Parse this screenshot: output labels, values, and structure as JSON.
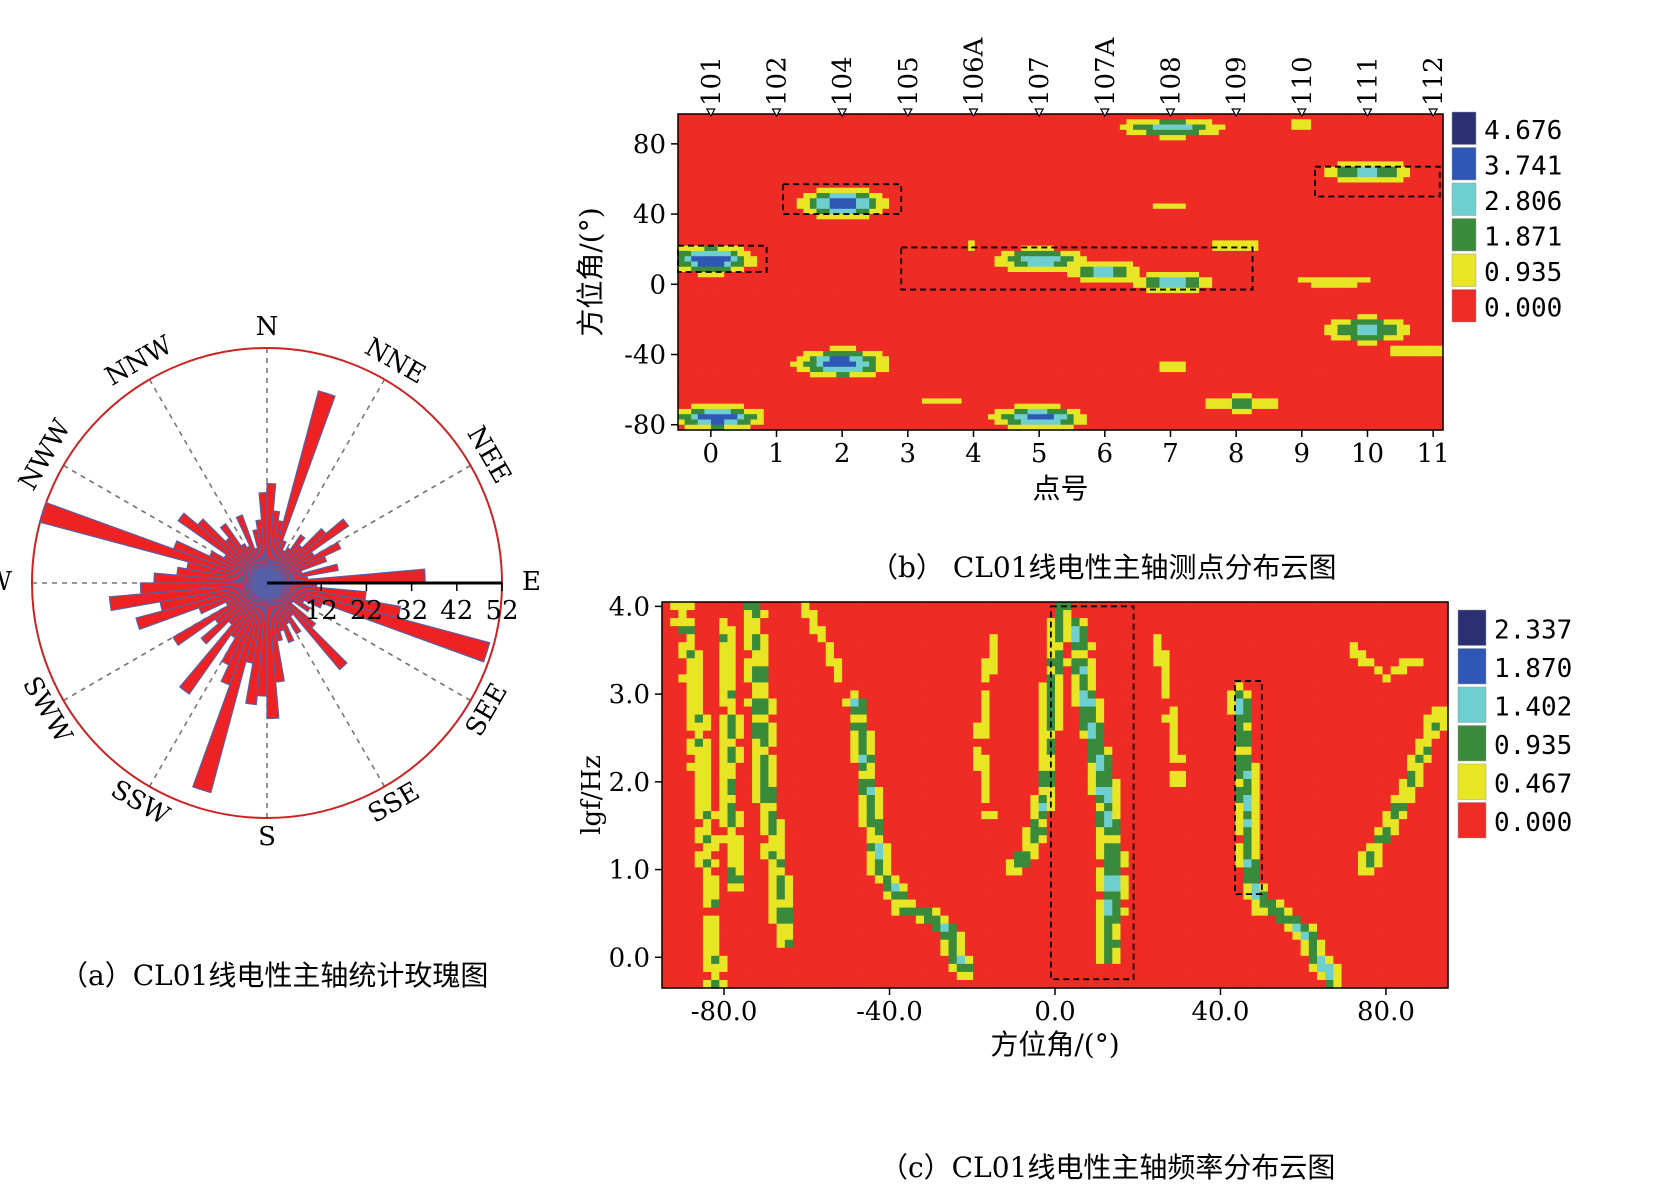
{
  "figure": {
    "caption_a": "（a）CL01线电性主轴统计玫瑰图",
    "caption_b": "（b） CL01线电性主轴测点分布云图",
    "caption_c": "（c）CL01线电性主轴频率分布云图"
  },
  "colors": {
    "rose_fill": "#ee2222",
    "rose_edge": "#5560a8",
    "circle": "#cc2222",
    "cmap": [
      "#ee2b24",
      "#e8e624",
      "#3a8a3c",
      "#6fcfcf",
      "#2f58b6",
      "#2b3072"
    ]
  },
  "chart_data": [
    {
      "id": "rose",
      "type": "rose",
      "directions": [
        "N",
        "NNE",
        "NEE",
        "E",
        "SEE",
        "SSE",
        "S",
        "SSW",
        "SWW",
        "W",
        "NWW",
        "NNW"
      ],
      "radial_ticks": [
        "12",
        "22",
        "32",
        "42",
        "52"
      ],
      "r_max": 52,
      "bin_width_deg": 5,
      "bins": [
        {
          "azimuth": 2.5,
          "value": 22
        },
        {
          "azimuth": 7.5,
          "value": 16
        },
        {
          "azimuth": 12.5,
          "value": 14
        },
        {
          "azimuth": 17.5,
          "value": 44
        },
        {
          "azimuth": 22.5,
          "value": 10
        },
        {
          "azimuth": 27.5,
          "value": 8
        },
        {
          "azimuth": 32.5,
          "value": 9
        },
        {
          "azimuth": 37.5,
          "value": 13
        },
        {
          "azimuth": 42.5,
          "value": 11
        },
        {
          "azimuth": 47.5,
          "value": 17
        },
        {
          "azimuth": 52.5,
          "value": 22
        },
        {
          "azimuth": 57.5,
          "value": 12
        },
        {
          "azimuth": 62.5,
          "value": 18
        },
        {
          "azimuth": 67.5,
          "value": 14
        },
        {
          "azimuth": 72.5,
          "value": 8
        },
        {
          "azimuth": 77.5,
          "value": 16
        },
        {
          "azimuth": 82.5,
          "value": 9
        },
        {
          "azimuth": 87.5,
          "value": 35
        },
        {
          "azimuth": 92.5,
          "value": 11
        },
        {
          "azimuth": 97.5,
          "value": 22
        },
        {
          "azimuth": 102.5,
          "value": 30
        },
        {
          "azimuth": 107.5,
          "value": 51
        },
        {
          "azimuth": 112.5,
          "value": 13
        },
        {
          "azimuth": 117.5,
          "value": 9
        },
        {
          "azimuth": 122.5,
          "value": 11
        },
        {
          "azimuth": 127.5,
          "value": 7
        },
        {
          "azimuth": 132.5,
          "value": 14
        },
        {
          "azimuth": 137.5,
          "value": 25
        },
        {
          "azimuth": 142.5,
          "value": 9
        },
        {
          "azimuth": 147.5,
          "value": 13
        },
        {
          "azimuth": 152.5,
          "value": 10
        },
        {
          "azimuth": 157.5,
          "value": 14
        },
        {
          "azimuth": 162.5,
          "value": 11
        },
        {
          "azimuth": 167.5,
          "value": 13
        },
        {
          "azimuth": 172.5,
          "value": 22
        },
        {
          "azimuth": 177.5,
          "value": 30
        },
        {
          "azimuth": 182.5,
          "value": 25
        },
        {
          "azimuth": 187.5,
          "value": 27
        },
        {
          "azimuth": 192.5,
          "value": 18
        },
        {
          "azimuth": 197.5,
          "value": 48
        },
        {
          "azimuth": 202.5,
          "value": 24
        },
        {
          "azimuth": 207.5,
          "value": 20
        },
        {
          "azimuth": 212.5,
          "value": 14
        },
        {
          "azimuth": 217.5,
          "value": 30
        },
        {
          "azimuth": 222.5,
          "value": 12
        },
        {
          "azimuth": 227.5,
          "value": 19
        },
        {
          "azimuth": 232.5,
          "value": 14
        },
        {
          "azimuth": 237.5,
          "value": 24
        },
        {
          "azimuth": 242.5,
          "value": 10
        },
        {
          "azimuth": 247.5,
          "value": 16
        },
        {
          "azimuth": 252.5,
          "value": 30
        },
        {
          "azimuth": 257.5,
          "value": 24
        },
        {
          "azimuth": 262.5,
          "value": 35
        },
        {
          "azimuth": 267.5,
          "value": 28
        },
        {
          "azimuth": 272.5,
          "value": 25
        },
        {
          "azimuth": 277.5,
          "value": 20
        },
        {
          "azimuth": 282.5,
          "value": 18
        },
        {
          "azimuth": 287.5,
          "value": 52
        },
        {
          "azimuth": 292.5,
          "value": 22
        },
        {
          "azimuth": 297.5,
          "value": 14
        },
        {
          "azimuth": 302.5,
          "value": 11
        },
        {
          "azimuth": 307.5,
          "value": 24
        },
        {
          "azimuth": 312.5,
          "value": 20
        },
        {
          "azimuth": 317.5,
          "value": 13
        },
        {
          "azimuth": 322.5,
          "value": 16
        },
        {
          "azimuth": 327.5,
          "value": 10
        },
        {
          "azimuth": 332.5,
          "value": 9
        },
        {
          "azimuth": 337.5,
          "value": 16
        },
        {
          "azimuth": 342.5,
          "value": 8
        },
        {
          "azimuth": 347.5,
          "value": 12
        },
        {
          "azimuth": 352.5,
          "value": 14
        },
        {
          "azimuth": 357.5,
          "value": 20
        }
      ]
    },
    {
      "id": "points",
      "type": "heatmap",
      "xlabel": "点号",
      "ylabel": "方位角/(°)",
      "xlim": [
        -0.5,
        11.15
      ],
      "ylim": [
        -83,
        97
      ],
      "x_ticks": [
        "0",
        "1",
        "2",
        "3",
        "4",
        "5",
        "6",
        "7",
        "8",
        "9",
        "10",
        "11"
      ],
      "y_ticks": [
        "80",
        "40",
        "0",
        "-40",
        "-80"
      ],
      "y_tick_values": [
        80,
        40,
        0,
        -40,
        -80
      ],
      "station_labels": [
        "101",
        "102",
        "104",
        "105",
        "106A",
        "107",
        "107A",
        "108",
        "109",
        "110",
        "111",
        "112"
      ],
      "station_x": [
        0,
        1,
        2,
        3,
        4,
        5,
        6,
        7,
        8,
        9,
        10,
        11
      ],
      "colorbar_values": [
        "4.676",
        "3.741",
        "2.806",
        "1.871",
        "0.935",
        "0.000"
      ],
      "vmax": 4.676,
      "hotspots": [
        {
          "x": 0.0,
          "y": 14,
          "sx": 0.55,
          "sy": 7,
          "v": 4.6
        },
        {
          "x": 0.1,
          "y": -76,
          "sx": 0.6,
          "sy": 6,
          "v": 4.5
        },
        {
          "x": 2.0,
          "y": 46,
          "sx": 0.55,
          "sy": 7,
          "v": 4.6
        },
        {
          "x": 2.0,
          "y": -45,
          "sx": 0.6,
          "sy": 7,
          "v": 4.4
        },
        {
          "x": 5.0,
          "y": 14,
          "sx": 0.6,
          "sy": 6,
          "v": 3.6
        },
        {
          "x": 6.0,
          "y": 7,
          "sx": 0.5,
          "sy": 6,
          "v": 3.2
        },
        {
          "x": 7.0,
          "y": 1,
          "sx": 0.55,
          "sy": 5,
          "v": 3.4
        },
        {
          "x": 5.0,
          "y": -76,
          "sx": 0.6,
          "sy": 6,
          "v": 4.2
        },
        {
          "x": 7.0,
          "y": 89,
          "sx": 0.7,
          "sy": 5,
          "v": 3.3
        },
        {
          "x": 10.0,
          "y": 64,
          "sx": 0.6,
          "sy": 6,
          "v": 3.2
        },
        {
          "x": 10.0,
          "y": -26,
          "sx": 0.6,
          "sy": 7,
          "v": 3.2
        },
        {
          "x": 8.1,
          "y": -68,
          "sx": 0.6,
          "sy": 5,
          "v": 2.2
        },
        {
          "x": 8.0,
          "y": 22,
          "sx": 0.6,
          "sy": 4,
          "v": 1.6
        },
        {
          "x": 9.5,
          "y": 2,
          "sx": 0.7,
          "sy": 4,
          "v": 1.8
        },
        {
          "x": 10.8,
          "y": -38,
          "sx": 0.6,
          "sy": 4,
          "v": 1.8
        },
        {
          "x": 4.0,
          "y": 22,
          "sx": 0.5,
          "sy": 3,
          "v": 1.2
        },
        {
          "x": 7.0,
          "y": 44,
          "sx": 0.4,
          "sy": 3,
          "v": 1.4
        },
        {
          "x": 7.0,
          "y": -47,
          "sx": 0.45,
          "sy": 3,
          "v": 1.4
        },
        {
          "x": 9.0,
          "y": 91,
          "sx": 0.4,
          "sy": 3,
          "v": 1.4
        },
        {
          "x": 3.5,
          "y": -66,
          "sx": 0.7,
          "sy": 3,
          "v": 1.1
        }
      ],
      "boxes": [
        {
          "x0": -0.5,
          "x1": 0.85,
          "y0": 7,
          "y1": 22
        },
        {
          "x0": 1.1,
          "x1": 2.9,
          "y0": 40,
          "y1": 57
        },
        {
          "x0": 2.9,
          "x1": 8.25,
          "y0": -3,
          "y1": 21
        },
        {
          "x0": 9.2,
          "x1": 11.1,
          "y0": 50,
          "y1": 67
        }
      ]
    },
    {
      "id": "frequency",
      "type": "heatmap",
      "xlabel": "方位角/(°)",
      "ylabel": "lgf/Hz",
      "xlim": [
        -95,
        95
      ],
      "ylim": [
        -0.35,
        4.05
      ],
      "x_ticks": [
        "-80.0",
        "-40.0",
        "0.0",
        "40.0",
        "80.0"
      ],
      "x_tick_values": [
        -80,
        -40,
        0,
        40,
        80
      ],
      "y_ticks": [
        "4.0",
        "3.0",
        "2.0",
        "1.0",
        "0.0"
      ],
      "y_tick_values": [
        4,
        3,
        2,
        1,
        0
      ],
      "colorbar_values": [
        "2.337",
        "1.870",
        "1.402",
        "0.935",
        "0.467",
        "0.000"
      ],
      "vmax": 2.337,
      "ridges": [
        {
          "pts": [
            [
              -90,
              4.0
            ],
            [
              -86,
              2.6
            ],
            [
              -84,
              1.2
            ],
            [
              -82,
              -0.3
            ]
          ],
          "w": 3.2,
          "v": 1.0
        },
        {
          "pts": [
            [
              -73,
              4.0
            ],
            [
              -71,
              2.8
            ],
            [
              -70,
              2.0
            ],
            [
              -67,
              1.0
            ],
            [
              -65,
              0.2
            ]
          ],
          "w": 3.0,
          "v": 1.2
        },
        {
          "pts": [
            [
              -80,
              3.8
            ],
            [
              -78,
              2.6
            ],
            [
              -79,
              1.8
            ],
            [
              -77,
              0.8
            ]
          ],
          "w": 2.6,
          "v": 1.1
        },
        {
          "pts": [
            [
              -48,
              2.9
            ],
            [
              -45,
              1.8
            ],
            [
              -42,
              1.0
            ],
            [
              -36,
              0.55
            ],
            [
              -30,
              0.5
            ],
            [
              -26,
              0.3
            ],
            [
              -22,
              -0.2
            ]
          ],
          "w": 2.6,
          "v": 1.4
        },
        {
          "pts": [
            [
              -10,
              1.0
            ],
            [
              -5,
              1.3
            ],
            [
              -2,
              2.0
            ],
            [
              -1,
              3.0
            ],
            [
              2,
              4.0
            ]
          ],
          "w": 2.6,
          "v": 1.3
        },
        {
          "pts": [
            [
              5,
              3.8
            ],
            [
              8,
              2.8
            ],
            [
              12,
              2.0
            ],
            [
              14,
              1.0
            ],
            [
              13,
              0.0
            ]
          ],
          "w": 3.0,
          "v": 1.6
        },
        {
          "pts": [
            [
              45,
              3.0
            ],
            [
              46,
              2.0
            ],
            [
              47,
              1.0
            ],
            [
              50,
              0.6
            ],
            [
              55,
              0.5
            ],
            [
              60,
              0.3
            ],
            [
              64,
              0.0
            ],
            [
              67,
              -0.3
            ]
          ],
          "w": 2.6,
          "v": 1.5
        },
        {
          "pts": [
            [
              75,
              1.0
            ],
            [
              82,
              1.6
            ],
            [
              88,
              2.2
            ],
            [
              93,
              2.8
            ]
          ],
          "w": 2.6,
          "v": 1.1
        },
        {
          "pts": [
            [
              -60,
              4.0
            ],
            [
              -52,
              3.2
            ]
          ],
          "w": 2.2,
          "v": 0.8
        },
        {
          "pts": [
            [
              -15,
              3.6
            ],
            [
              -18,
              2.4
            ],
            [
              -16,
              1.6
            ]
          ],
          "w": 2.0,
          "v": 0.8
        },
        {
          "pts": [
            [
              25,
              3.6
            ],
            [
              28,
              2.8
            ],
            [
              30,
              2.0
            ]
          ],
          "w": 2.2,
          "v": 0.7
        },
        {
          "pts": [
            [
              72,
              3.5
            ],
            [
              80,
              3.2
            ],
            [
              88,
              3.4
            ]
          ],
          "w": 2.0,
          "v": 0.8
        }
      ],
      "boxes": [
        {
          "x0": -1,
          "x1": 19,
          "y0": -0.25,
          "y1": 4.0
        },
        {
          "x0": 43.5,
          "x1": 50,
          "y0": 0.72,
          "y1": 3.15
        }
      ]
    }
  ]
}
